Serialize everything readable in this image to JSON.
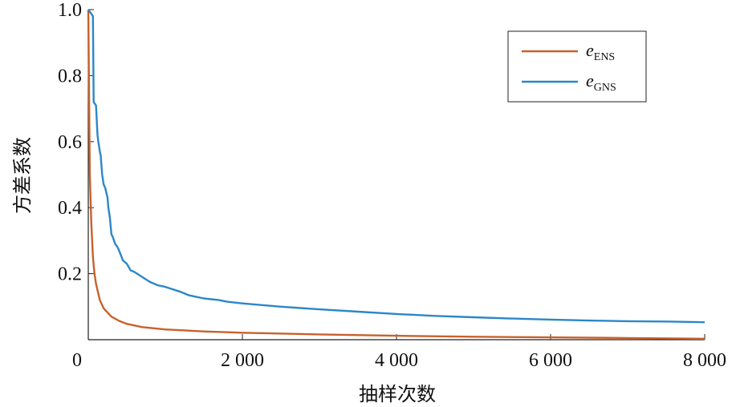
{
  "chart_data": {
    "type": "line",
    "title": "",
    "xlabel": "抽样次数",
    "ylabel": "方差系数",
    "xlim": [
      0,
      8000
    ],
    "ylim": [
      0,
      1.0
    ],
    "x_ticks": [
      0,
      2000,
      4000,
      6000,
      8000
    ],
    "x_tick_labels": [
      "0",
      "2 000",
      "4 000",
      "6 000",
      "8 000"
    ],
    "y_ticks": [
      0.2,
      0.4,
      0.6,
      0.8,
      1.0
    ],
    "y_tick_labels": [
      "0.2",
      "0.4",
      "0.6",
      "0.8",
      "1.0"
    ],
    "grid": false,
    "legend_position": "top-right",
    "series": [
      {
        "name": "e_ENS",
        "legend_main": "e",
        "legend_sub": "ENS",
        "color": "#c8612b",
        "x": [
          0,
          20,
          40,
          60,
          80,
          100,
          150,
          200,
          300,
          400,
          500,
          700,
          1000,
          1500,
          2000,
          3000,
          4000,
          5000,
          6000,
          7000,
          8000
        ],
        "y": [
          1.0,
          0.5,
          0.35,
          0.25,
          0.2,
          0.17,
          0.12,
          0.095,
          0.07,
          0.057,
          0.048,
          0.038,
          0.031,
          0.025,
          0.021,
          0.016,
          0.012,
          0.009,
          0.007,
          0.005,
          0.003
        ]
      },
      {
        "name": "e_GNS",
        "legend_main": "e",
        "legend_sub": "GNS",
        "color": "#2b87c8",
        "x": [
          0,
          30,
          60,
          70,
          100,
          120,
          130,
          150,
          160,
          180,
          200,
          220,
          250,
          260,
          280,
          300,
          320,
          350,
          380,
          400,
          450,
          500,
          550,
          600,
          700,
          800,
          900,
          1000,
          1200,
          1300,
          1500,
          1700,
          1800,
          2000,
          2500,
          3000,
          3500,
          4000,
          4500,
          5000,
          5500,
          6000,
          6500,
          7000,
          7500,
          8000
        ],
        "y": [
          1.0,
          0.99,
          0.98,
          0.72,
          0.71,
          0.62,
          0.6,
          0.57,
          0.56,
          0.5,
          0.47,
          0.46,
          0.43,
          0.4,
          0.37,
          0.32,
          0.31,
          0.29,
          0.28,
          0.27,
          0.24,
          0.23,
          0.21,
          0.205,
          0.19,
          0.175,
          0.165,
          0.16,
          0.145,
          0.135,
          0.125,
          0.12,
          0.115,
          0.11,
          0.1,
          0.092,
          0.085,
          0.078,
          0.072,
          0.068,
          0.064,
          0.061,
          0.058,
          0.056,
          0.055,
          0.053
        ]
      }
    ]
  }
}
